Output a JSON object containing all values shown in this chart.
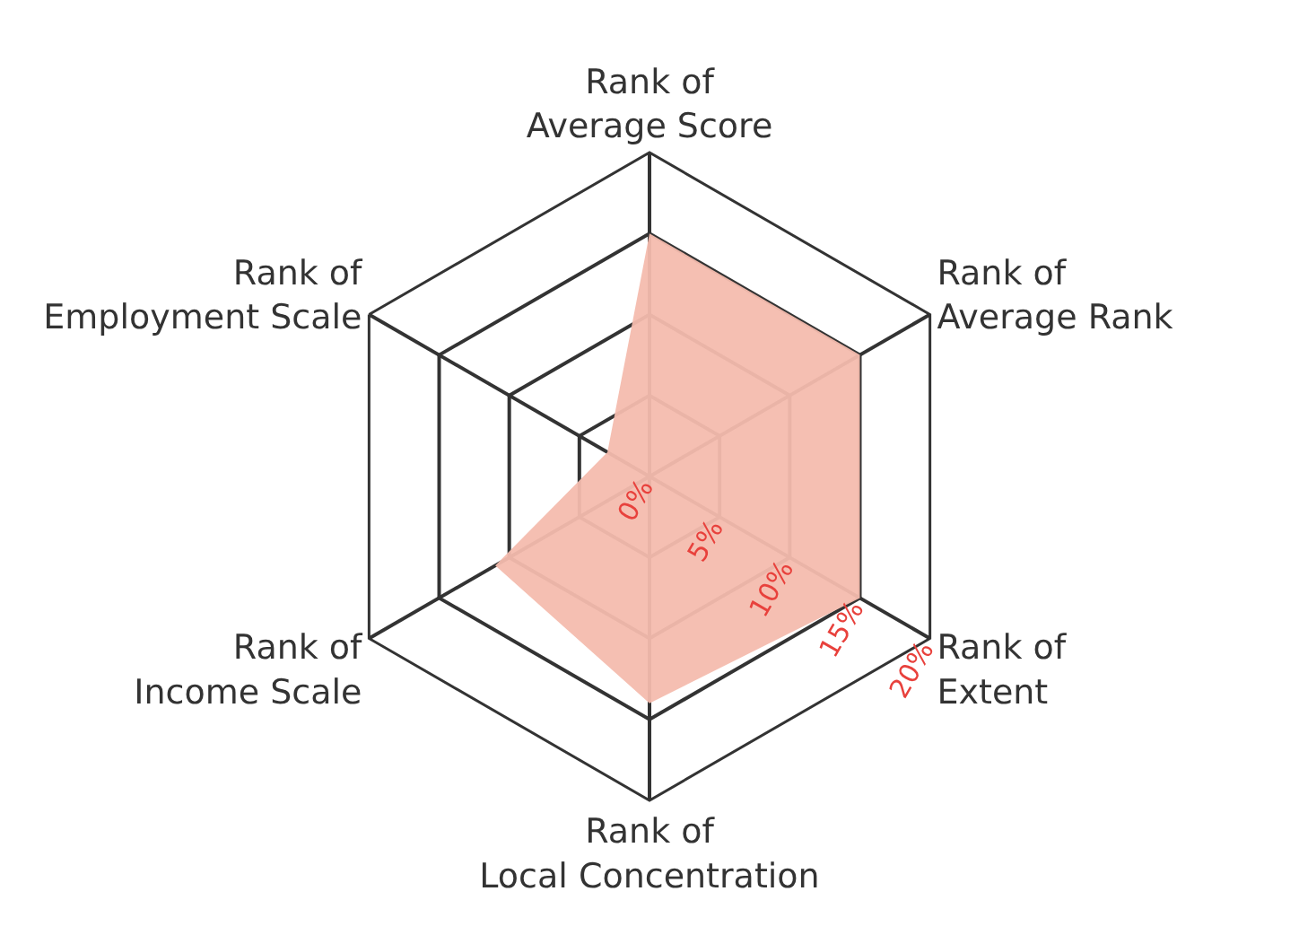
{
  "chart_data": {
    "type": "radar",
    "categories": [
      "Rank of Average Score",
      "Rank of Average Rank",
      "Rank of Extent",
      "Rank of Local Concentration",
      "Rank of Income Scale",
      "Rank of Employment Scale"
    ],
    "series": [
      {
        "color": "#f4bcae",
        "values": [
          15,
          15,
          15,
          14,
          11,
          3
        ]
      }
    ],
    "ylim": [
      0,
      20
    ],
    "yticks": [
      {
        "value": 0,
        "label": "0%"
      },
      {
        "value": 5,
        "label": "5%"
      },
      {
        "value": 10,
        "label": "10%"
      },
      {
        "value": 15,
        "label": "15%"
      },
      {
        "value": 20,
        "label": "20%"
      }
    ],
    "grid": true
  }
}
